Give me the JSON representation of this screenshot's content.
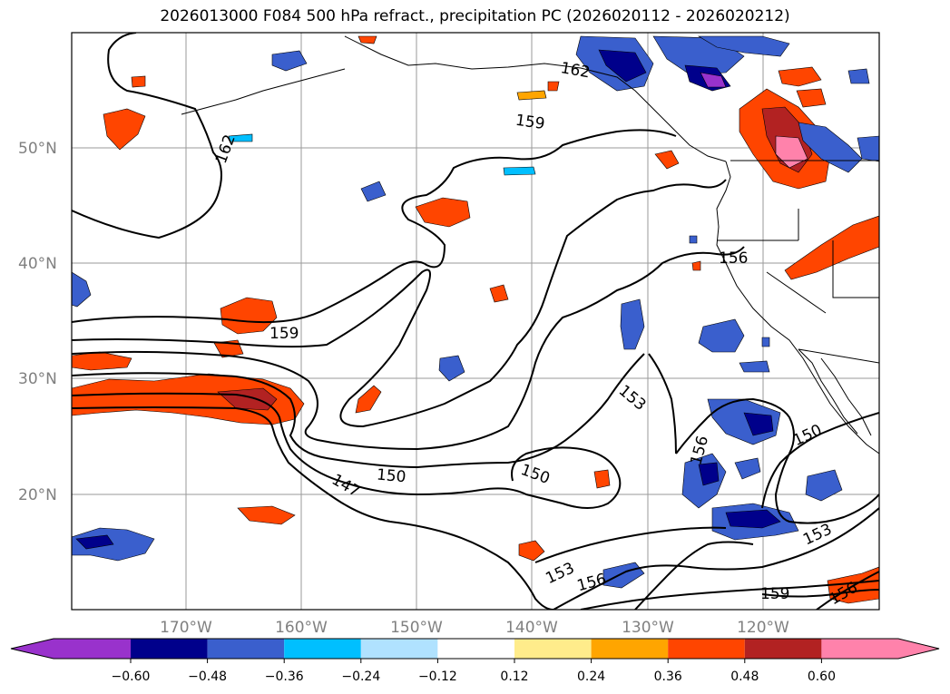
{
  "title": "2026013000 F084 500 hPa refract., precipitation PC (2026020112 - 2026020212)",
  "lat_labels": [
    "50°N",
    "40°N",
    "30°N",
    "20°N"
  ],
  "lon_labels": [
    "170°W",
    "160°W",
    "150°W",
    "140°W",
    "130°W",
    "120°W"
  ],
  "colorbar": {
    "ticks": [
      "−0.60",
      "−0.48",
      "−0.36",
      "−0.24",
      "−0.12",
      "0.12",
      "0.24",
      "0.36",
      "0.48",
      "0.60"
    ],
    "colors": [
      "#9932cc",
      "#00008b",
      "#3a5fcd",
      "#00bfff",
      "#b0e2ff",
      "#ffffff",
      "#ffec8b",
      "#ffa500",
      "#ff4500",
      "#b22222",
      "#ff82ab"
    ]
  },
  "contour_labels": [
    "162",
    "162",
    "159",
    "159",
    "156",
    "153",
    "156",
    "150",
    "150",
    "147",
    "150",
    "153",
    "153",
    "156",
    "159",
    "156"
  ]
}
